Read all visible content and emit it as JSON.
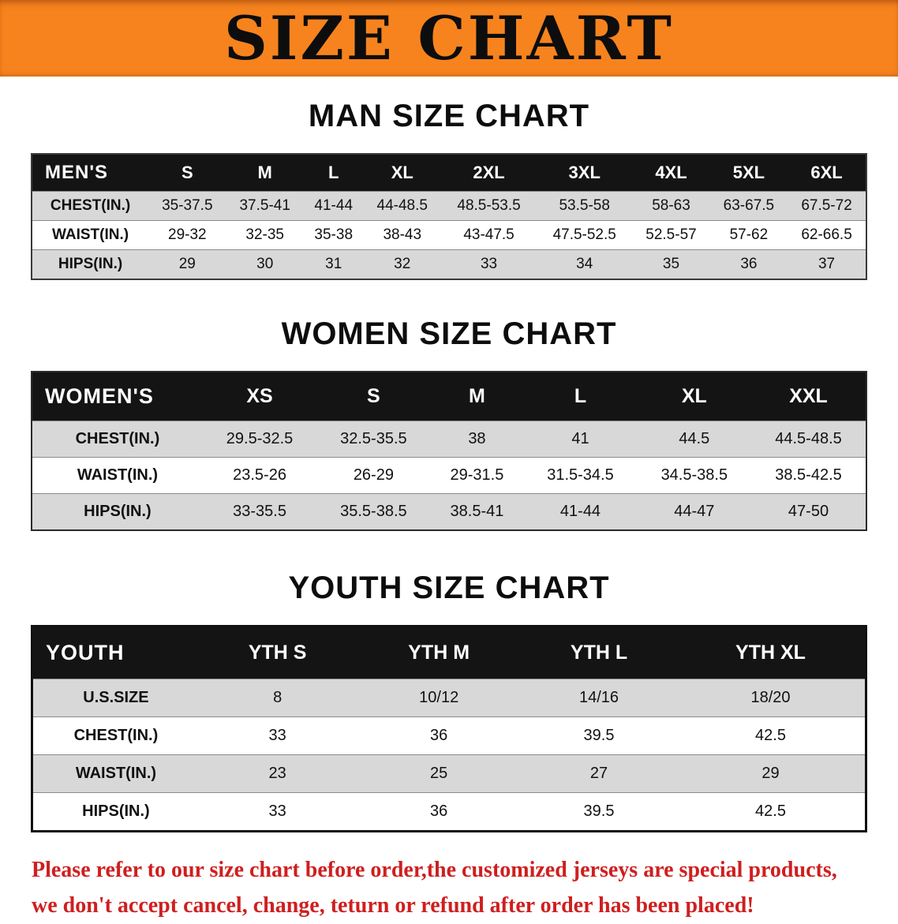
{
  "colors": {
    "banner-bg": "#f6831e",
    "header-bar": "#141414",
    "stripe": "#d8d8d8",
    "disclaimer": "#cf1f1f"
  },
  "banner": {
    "title": "SIZE CHART"
  },
  "sections": [
    {
      "id": "men",
      "heading": "MAN SIZE CHART",
      "table": {
        "header": [
          "MEN'S",
          "S",
          "M",
          "L",
          "XL",
          "2XL",
          "3XL",
          "4XL",
          "5XL",
          "6XL"
        ],
        "rows": [
          [
            "CHEST(IN.)",
            "35-37.5",
            "37.5-41",
            "41-44",
            "44-48.5",
            "48.5-53.5",
            "53.5-58",
            "58-63",
            "63-67.5",
            "67.5-72"
          ],
          [
            "WAIST(IN.)",
            "29-32",
            "32-35",
            "35-38",
            "38-43",
            "43-47.5",
            "47.5-52.5",
            "52.5-57",
            "57-62",
            "62-66.5"
          ],
          [
            "HIPS(IN.)",
            "29",
            "30",
            "31",
            "32",
            "33",
            "34",
            "35",
            "36",
            "37"
          ]
        ]
      }
    },
    {
      "id": "women",
      "heading": "WOMEN SIZE CHART",
      "table": {
        "header": [
          "WOMEN'S",
          "XS",
          "S",
          "M",
          "L",
          "XL",
          "XXL"
        ],
        "rows": [
          [
            "CHEST(IN.)",
            "29.5-32.5",
            "32.5-35.5",
            "38",
            "41",
            "44.5",
            "44.5-48.5"
          ],
          [
            "WAIST(IN.)",
            "23.5-26",
            "26-29",
            "29-31.5",
            "31.5-34.5",
            "34.5-38.5",
            "38.5-42.5"
          ],
          [
            "HIPS(IN.)",
            "33-35.5",
            "35.5-38.5",
            "38.5-41",
            "41-44",
            "44-47",
            "47-50"
          ]
        ]
      }
    },
    {
      "id": "youth",
      "heading": "YOUTH SIZE CHART",
      "table": {
        "header": [
          "YOUTH",
          "YTH S",
          "YTH M",
          "YTH L",
          "YTH XL"
        ],
        "rows": [
          [
            "U.S.SIZE",
            "8",
            "10/12",
            "14/16",
            "18/20"
          ],
          [
            "CHEST(IN.)",
            "33",
            "36",
            "39.5",
            "42.5"
          ],
          [
            "WAIST(IN.)",
            "23",
            "25",
            "27",
            "29"
          ],
          [
            "HIPS(IN.)",
            "33",
            "36",
            "39.5",
            "42.5"
          ]
        ]
      }
    }
  ],
  "disclaimer": {
    "line1": "Please refer to our size chart before order,the customized jerseys are special products,",
    "line2": "we don't accept cancel, change, teturn or refund after order has been placed!"
  }
}
